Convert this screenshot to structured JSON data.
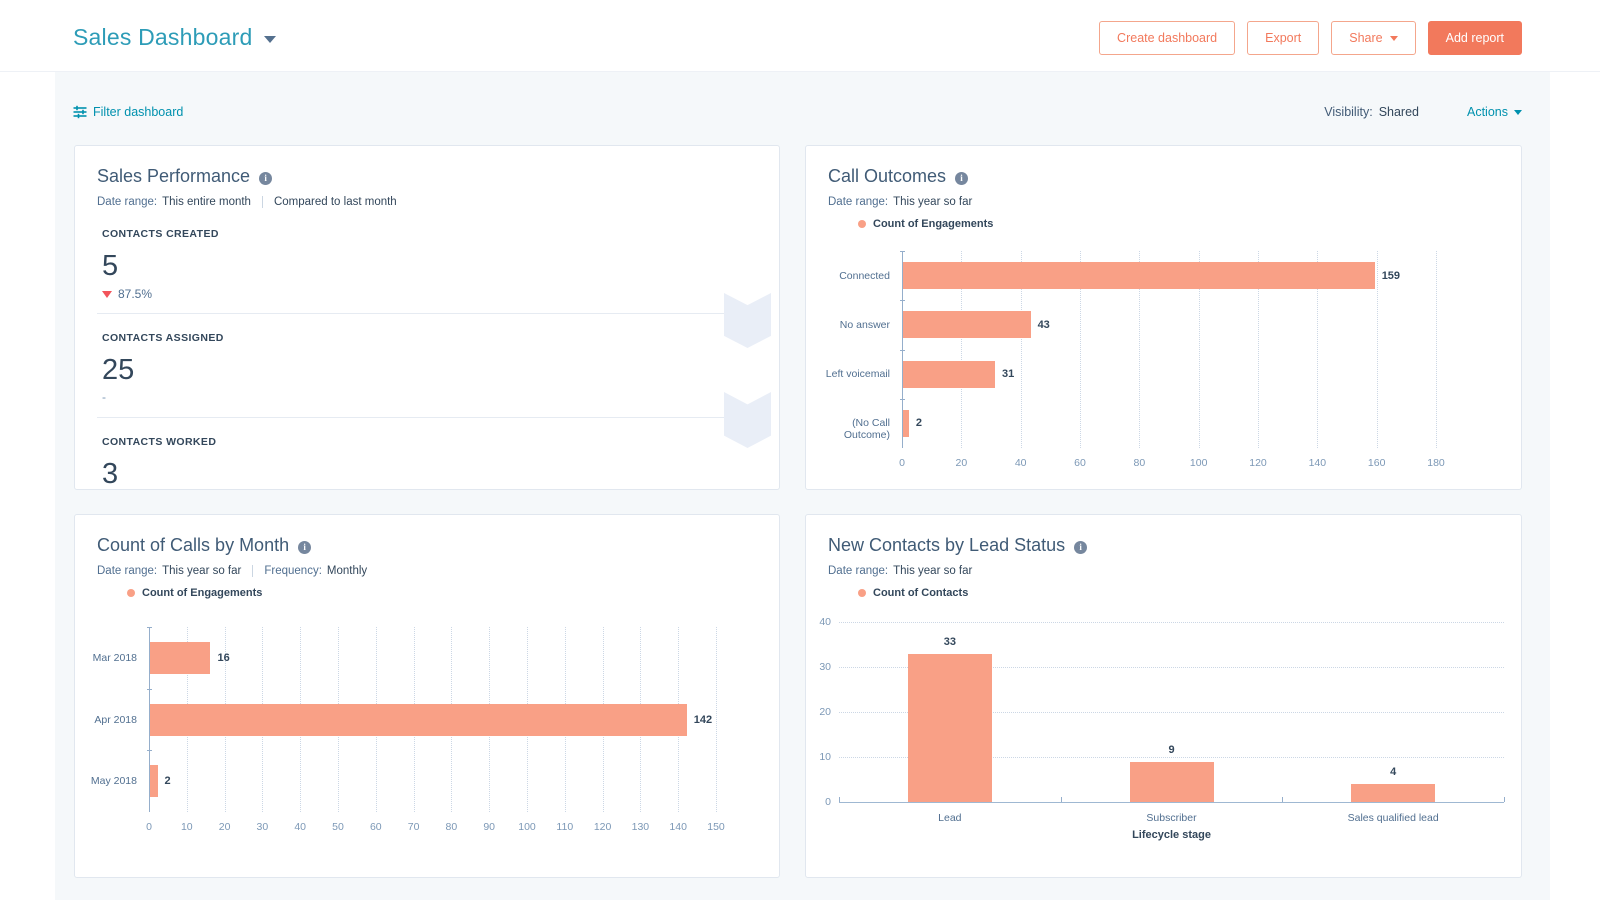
{
  "header": {
    "title": "Sales Dashboard",
    "buttons": {
      "create": "Create dashboard",
      "export": "Export",
      "share": "Share",
      "add_report": "Add report"
    }
  },
  "filter_bar": {
    "filter_label": "Filter dashboard",
    "visibility_label": "Visibility:",
    "visibility_value": "Shared",
    "actions_label": "Actions"
  },
  "colors": {
    "accent_orange": "#f2795c",
    "bar_salmon": "#f9a086",
    "link_teal": "#0091ae",
    "title_teal": "#2d9cb7",
    "text_navy": "#33475b",
    "text_grayblue": "#516f90",
    "tick_gray": "#7c98b6",
    "negative_red": "#f2545b",
    "band_gray": "#f5f8fa"
  },
  "cards": {
    "sales_performance": {
      "title": "Sales Performance",
      "date_range_label": "Date range:",
      "date_range_value": "This entire month",
      "comparison": "Compared to last month",
      "metrics": [
        {
          "label": "CONTACTS CREATED",
          "value": "5",
          "change": "87.5%",
          "direction": "down"
        },
        {
          "label": "CONTACTS ASSIGNED",
          "value": "25",
          "change": "-",
          "direction": "none"
        },
        {
          "label": "CONTACTS WORKED",
          "value": "3",
          "change": "",
          "direction": "none"
        }
      ]
    }
  },
  "chart_data": [
    {
      "type": "bar",
      "orientation": "horizontal",
      "card_title": "Call Outcomes",
      "date_range_label": "Date range:",
      "date_range_value": "This year so far",
      "legend_label": "Count of Engagements",
      "legend_position": "top-left",
      "grid": "vertical-dotted",
      "categories": [
        "Connected",
        "No answer",
        "Left voicemail",
        "(No Call Outcome)"
      ],
      "values": [
        159,
        43,
        31,
        2
      ],
      "xlim": [
        0,
        180
      ],
      "xtick_step": 20,
      "bar_color": "#f9a086"
    },
    {
      "type": "bar",
      "orientation": "horizontal",
      "card_title": "Count of Calls by Month",
      "date_range_label": "Date range:",
      "date_range_value": "This year so far",
      "frequency_label": "Frequency:",
      "frequency_value": "Monthly",
      "legend_label": "Count of Engagements",
      "legend_position": "top-left",
      "grid": "vertical-dotted",
      "categories": [
        "Mar 2018",
        "Apr 2018",
        "May 2018"
      ],
      "values": [
        16,
        142,
        2
      ],
      "xlim": [
        0,
        150
      ],
      "xtick_step": 10,
      "bar_color": "#f9a086"
    },
    {
      "type": "bar",
      "orientation": "vertical",
      "card_title": "New Contacts by Lead Status",
      "date_range_label": "Date range:",
      "date_range_value": "This year so far",
      "legend_label": "Count of Contacts",
      "legend_position": "top-left",
      "grid": "horizontal-dotted",
      "categories": [
        "Lead",
        "Subscriber",
        "Sales qualified lead"
      ],
      "values": [
        33,
        9,
        4
      ],
      "ylim": [
        0,
        40
      ],
      "ytick_step": 10,
      "xlabel": "Lifecycle stage",
      "bar_color": "#f9a086"
    }
  ]
}
